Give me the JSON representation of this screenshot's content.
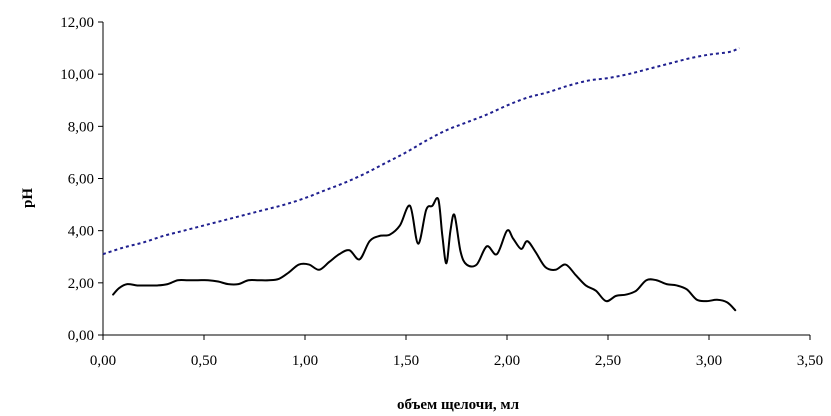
{
  "chart_data": {
    "type": "line",
    "title": "",
    "xlabel": "объем щелочи, мл",
    "ylabel": "pH",
    "xlim": [
      0,
      3.5
    ],
    "ylim": [
      0,
      12
    ],
    "grid": false,
    "legend": "none",
    "x_ticks": [
      "0,00",
      "0,50",
      "1,00",
      "1,50",
      "2,00",
      "2,50",
      "3,00",
      "3,50"
    ],
    "y_ticks": [
      "0,00",
      "2,00",
      "4,00",
      "6,00",
      "8,00",
      "10,00",
      "12,00"
    ],
    "series": [
      {
        "color": "#1f1f8f",
        "style": "dotted",
        "x": [
          0.0,
          0.1,
          0.2,
          0.3,
          0.4,
          0.5,
          0.6,
          0.7,
          0.8,
          0.9,
          1.0,
          1.1,
          1.2,
          1.3,
          1.4,
          1.5,
          1.6,
          1.7,
          1.8,
          1.9,
          2.0,
          2.1,
          2.2,
          2.3,
          2.4,
          2.5,
          2.6,
          2.7,
          2.8,
          2.9,
          3.0,
          3.1,
          3.15
        ],
        "y": [
          3.1,
          3.35,
          3.55,
          3.8,
          4.0,
          4.2,
          4.4,
          4.6,
          4.8,
          5.0,
          5.25,
          5.55,
          5.85,
          6.2,
          6.6,
          7.0,
          7.45,
          7.85,
          8.15,
          8.45,
          8.8,
          9.1,
          9.3,
          9.55,
          9.75,
          9.85,
          10.0,
          10.2,
          10.4,
          10.6,
          10.75,
          10.85,
          11.0
        ]
      },
      {
        "color": "#000000",
        "style": "solid",
        "x": [
          0.05,
          0.08,
          0.12,
          0.17,
          0.22,
          0.27,
          0.32,
          0.37,
          0.42,
          0.47,
          0.52,
          0.57,
          0.62,
          0.67,
          0.72,
          0.77,
          0.82,
          0.87,
          0.92,
          0.97,
          1.02,
          1.07,
          1.12,
          1.17,
          1.22,
          1.27,
          1.32,
          1.37,
          1.42,
          1.47,
          1.52,
          1.56,
          1.6,
          1.63,
          1.66,
          1.68,
          1.7,
          1.72,
          1.74,
          1.77,
          1.8,
          1.85,
          1.9,
          1.95,
          2.0,
          2.03,
          2.07,
          2.1,
          2.14,
          2.19,
          2.24,
          2.29,
          2.34,
          2.39,
          2.44,
          2.49,
          2.54,
          2.59,
          2.64,
          2.69,
          2.74,
          2.79,
          2.84,
          2.89,
          2.94,
          2.99,
          3.04,
          3.09,
          3.13
        ],
        "y": [
          1.55,
          1.8,
          1.95,
          1.9,
          1.9,
          1.9,
          1.95,
          2.1,
          2.1,
          2.1,
          2.1,
          2.05,
          1.95,
          1.95,
          2.1,
          2.1,
          2.1,
          2.15,
          2.4,
          2.7,
          2.7,
          2.5,
          2.8,
          3.1,
          3.25,
          2.9,
          3.6,
          3.8,
          3.85,
          4.2,
          4.95,
          3.5,
          4.8,
          4.95,
          5.2,
          3.8,
          2.75,
          4.0,
          4.6,
          3.2,
          2.7,
          2.7,
          3.4,
          3.1,
          4.0,
          3.7,
          3.3,
          3.6,
          3.2,
          2.6,
          2.5,
          2.7,
          2.3,
          1.9,
          1.7,
          1.3,
          1.5,
          1.55,
          1.7,
          2.1,
          2.1,
          1.95,
          1.9,
          1.75,
          1.35,
          1.3,
          1.35,
          1.25,
          0.95
        ]
      }
    ]
  }
}
